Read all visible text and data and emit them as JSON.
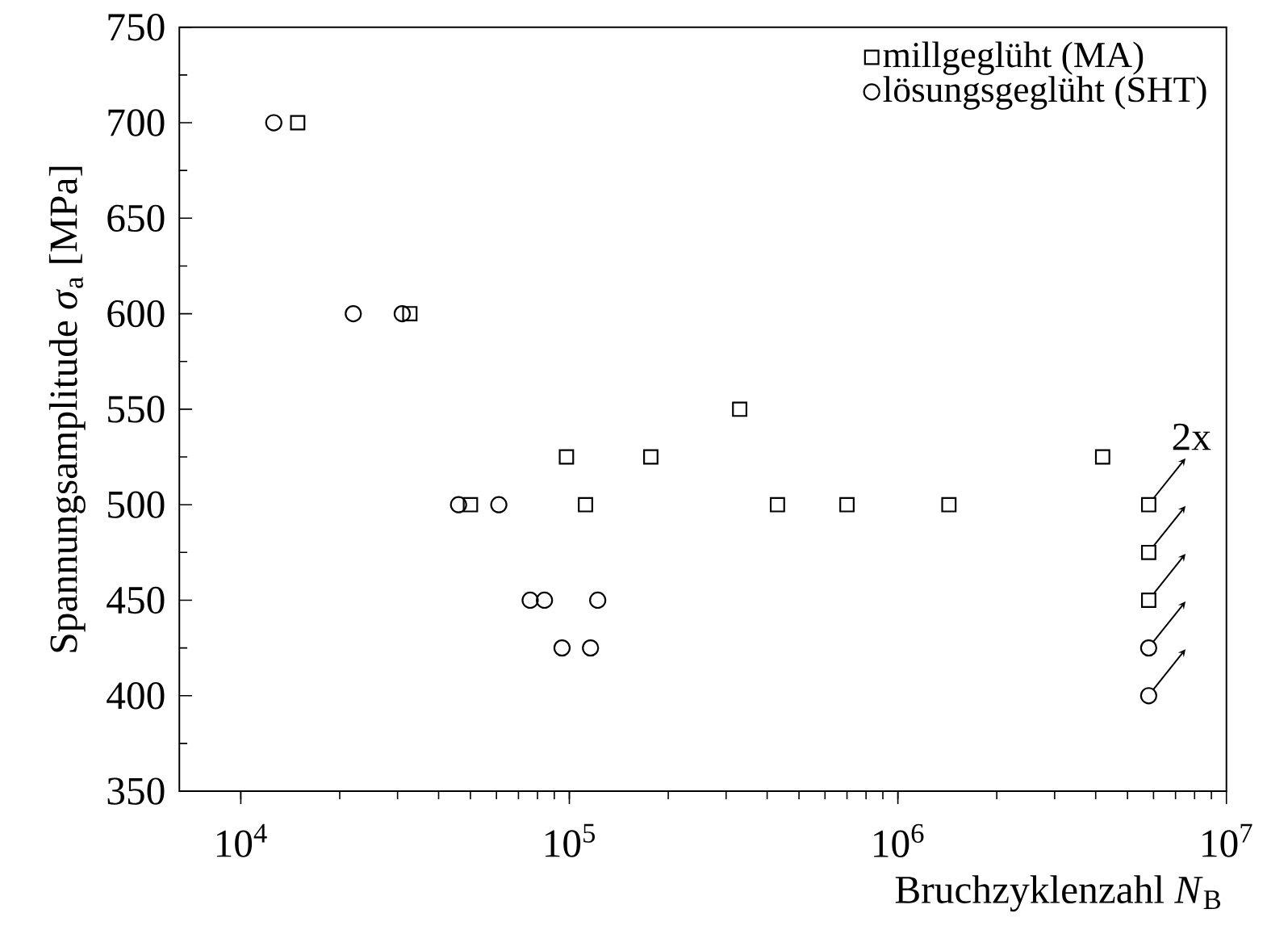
{
  "chart_data": {
    "type": "scatter",
    "xlabel": "Bruchzyklenzahl *N*$_{B}$",
    "ylabel": "Spannungsamplitude *σ*$_{a}$ [MPa]",
    "log": "x",
    "xlim": [
      6500,
      10000000
    ],
    "xticks": [
      {
        "value": 10000,
        "label": "10$^{4}$"
      },
      {
        "value": 100000,
        "label": "10$^{5}$"
      },
      {
        "value": 1000000,
        "label": "10$^{6}$"
      },
      {
        "value": 10000000,
        "label": "10$^{7}$"
      }
    ],
    "ylim": [
      350,
      750
    ],
    "yticks": [
      350,
      400,
      450,
      500,
      550,
      600,
      650,
      700,
      750
    ],
    "grid": false,
    "legend": "top right",
    "series": [
      {
        "name": "millgeglüht (MA)",
        "color": "#000000",
        "marker": "square",
        "x": [
          14900,
          32700,
          50000,
          98000,
          112000,
          177000,
          330000,
          430000,
          700000,
          1430000,
          4200000,
          5800000,
          5800000,
          5800000
        ],
        "values": [
          700,
          600,
          500,
          525,
          500,
          525,
          550,
          500,
          500,
          500,
          525,
          500,
          475,
          450
        ]
      },
      {
        "name": "lösungsgeglüht (SHT)",
        "color": "#000000",
        "marker": "circle",
        "x": [
          12600,
          22000,
          31000,
          46000,
          61000,
          76000,
          84000,
          122000,
          95000,
          116000,
          5800000,
          5800000
        ],
        "values": [
          700,
          600,
          600,
          500,
          500,
          450,
          450,
          450,
          425,
          425,
          425,
          400
        ]
      }
    ],
    "annotations": [
      {
        "text": "2x",
        "x": 5800000,
        "y": 500
      }
    ]
  }
}
